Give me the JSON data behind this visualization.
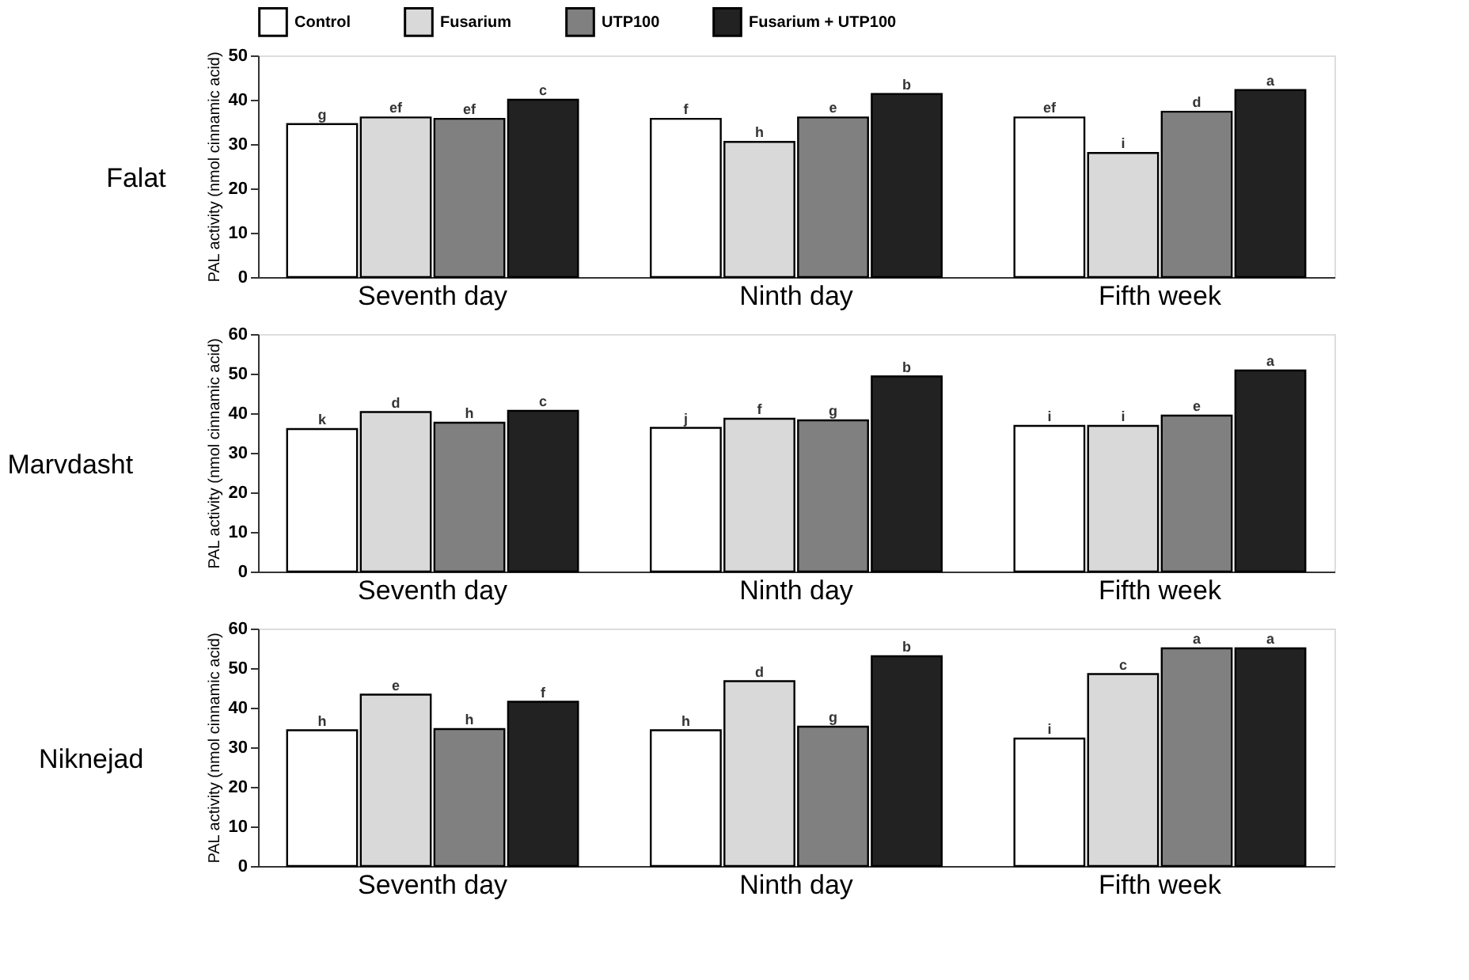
{
  "chart_data": [
    {
      "type": "bar",
      "title": "Falat",
      "ylabel": "PAL activity (nmol cinnamic acid)",
      "categories": [
        "Seventh day",
        "Ninth day",
        "Fifth week"
      ],
      "ylim": [
        0,
        50
      ],
      "yticks": [
        0,
        10,
        20,
        30,
        40,
        50
      ],
      "grid": false,
      "legend": "top",
      "series": [
        {
          "name": "Control",
          "color": "#ffffff",
          "values": [
            34.5,
            35.7,
            36
          ],
          "value_labels": [
            "g",
            "f",
            "ef"
          ]
        },
        {
          "name": "Fusarium",
          "color": "#d9d9d9",
          "values": [
            36,
            30.5,
            28
          ],
          "value_labels": [
            "ef",
            "h",
            "i"
          ]
        },
        {
          "name": "UTP100",
          "color": "#808080",
          "values": [
            35.7,
            36,
            37.3
          ],
          "value_labels": [
            "ef",
            "e",
            "d"
          ]
        },
        {
          "name": "Fusarium + UTP100",
          "color": "#222222",
          "values": [
            40,
            41.3,
            42.2
          ],
          "value_labels": [
            "c",
            "b",
            "a"
          ]
        }
      ]
    },
    {
      "type": "bar",
      "title": "Marvdasht",
      "ylabel": "PAL activity (nmol cinnamic acid)",
      "categories": [
        "Seventh day",
        "Ninth day",
        "Fifth week"
      ],
      "ylim": [
        0,
        60
      ],
      "yticks": [
        0,
        10,
        20,
        30,
        40,
        50,
        60
      ],
      "grid": false,
      "legend": false,
      "series": [
        {
          "color": "#ffffff",
          "values": [
            36,
            36.3,
            36.8
          ],
          "value_labels": [
            "k",
            "j",
            "i"
          ]
        },
        {
          "color": "#d9d9d9",
          "values": [
            40.3,
            38.6,
            36.8
          ],
          "value_labels": [
            "d",
            "f",
            "i"
          ]
        },
        {
          "color": "#808080",
          "values": [
            37.6,
            38.2,
            39.4
          ],
          "value_labels": [
            "h",
            "g",
            "e"
          ]
        },
        {
          "color": "#222222",
          "values": [
            40.6,
            49.3,
            50.8
          ],
          "value_labels": [
            "c",
            "b",
            "a"
          ]
        }
      ]
    },
    {
      "type": "bar",
      "title": "Niknejad",
      "ylabel": "PAL activity (nmol cinnamic acid)",
      "categories": [
        "Seventh day",
        "Ninth day",
        "Fifth week"
      ],
      "ylim": [
        0,
        60
      ],
      "yticks": [
        0,
        10,
        20,
        30,
        40,
        50,
        60
      ],
      "grid": false,
      "legend": false,
      "series": [
        {
          "color": "#ffffff",
          "values": [
            34.3,
            34.3,
            32.2
          ],
          "value_labels": [
            "h",
            "h",
            "i"
          ]
        },
        {
          "color": "#d9d9d9",
          "values": [
            43.3,
            46.7,
            48.5
          ],
          "value_labels": [
            "e",
            "d",
            "c"
          ]
        },
        {
          "color": "#808080",
          "values": [
            34.6,
            35.2,
            55
          ],
          "value_labels": [
            "h",
            "g",
            "a"
          ]
        },
        {
          "color": "#222222",
          "values": [
            41.5,
            53,
            55
          ],
          "value_labels": [
            "f",
            "b",
            "a"
          ]
        }
      ]
    }
  ]
}
